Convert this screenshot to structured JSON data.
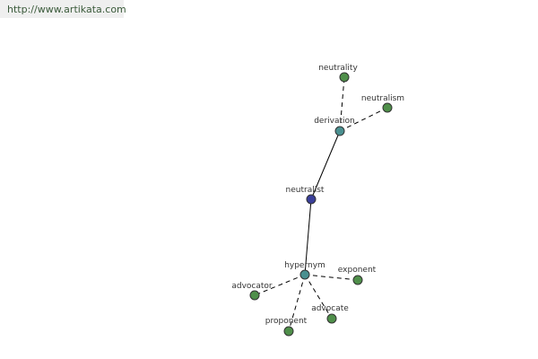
{
  "header": {
    "url": "http://www.artikata.com"
  },
  "nodes": [
    {
      "label": "neutralist"
    },
    {
      "label": "derivation"
    },
    {
      "label": "hypernym"
    },
    {
      "label": "neutrality"
    },
    {
      "label": "neutralism"
    },
    {
      "label": "advocator"
    },
    {
      "label": "exponent"
    },
    {
      "label": "advocate"
    },
    {
      "label": "proponent"
    }
  ]
}
